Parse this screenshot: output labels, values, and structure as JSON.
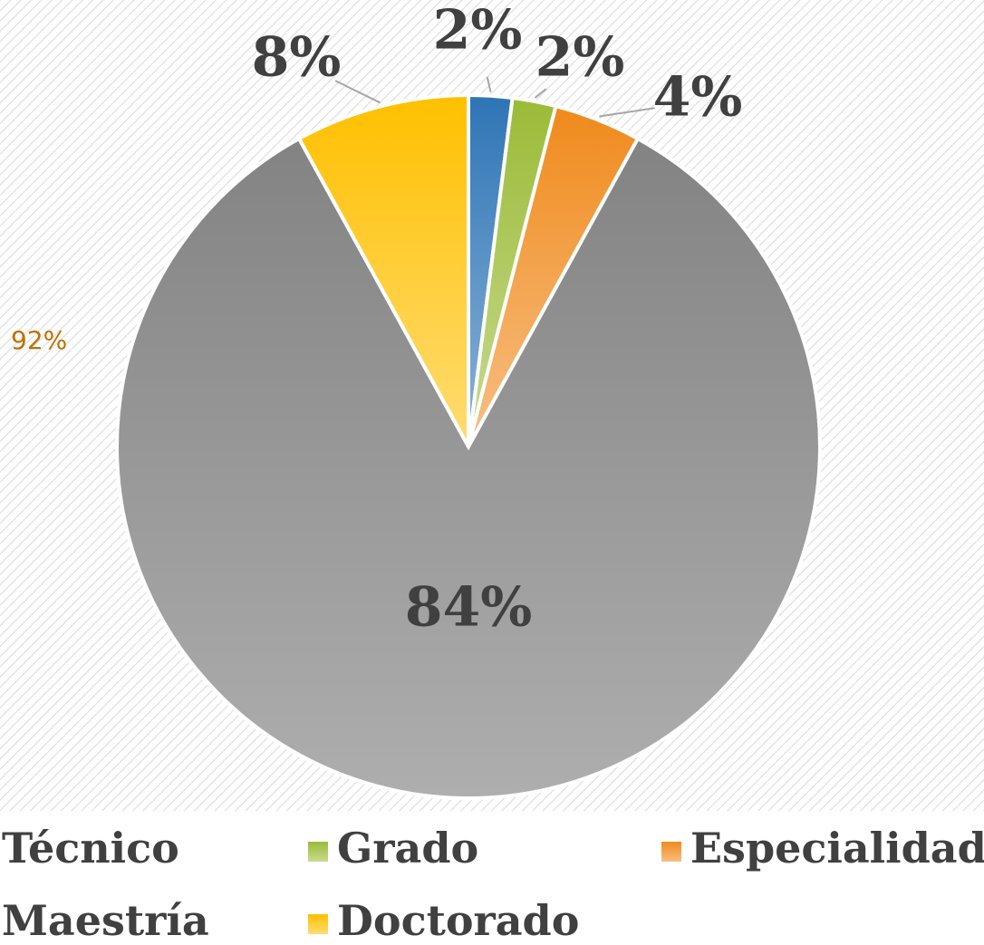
{
  "chart_data": {
    "type": "pie",
    "categories": [
      "Técnico",
      "Grado",
      "Especialidad",
      "Maestría",
      "Doctorado"
    ],
    "values": [
      2,
      2,
      4,
      84,
      8
    ],
    "value_labels": [
      "2%",
      "2%",
      "4%",
      "84%",
      "8%"
    ],
    "colors": [
      "#2e75b6",
      "#9bbb37",
      "#f08a1c",
      "#838383",
      "#ffc000"
    ],
    "annotation": "92%",
    "legend": "bottom"
  }
}
